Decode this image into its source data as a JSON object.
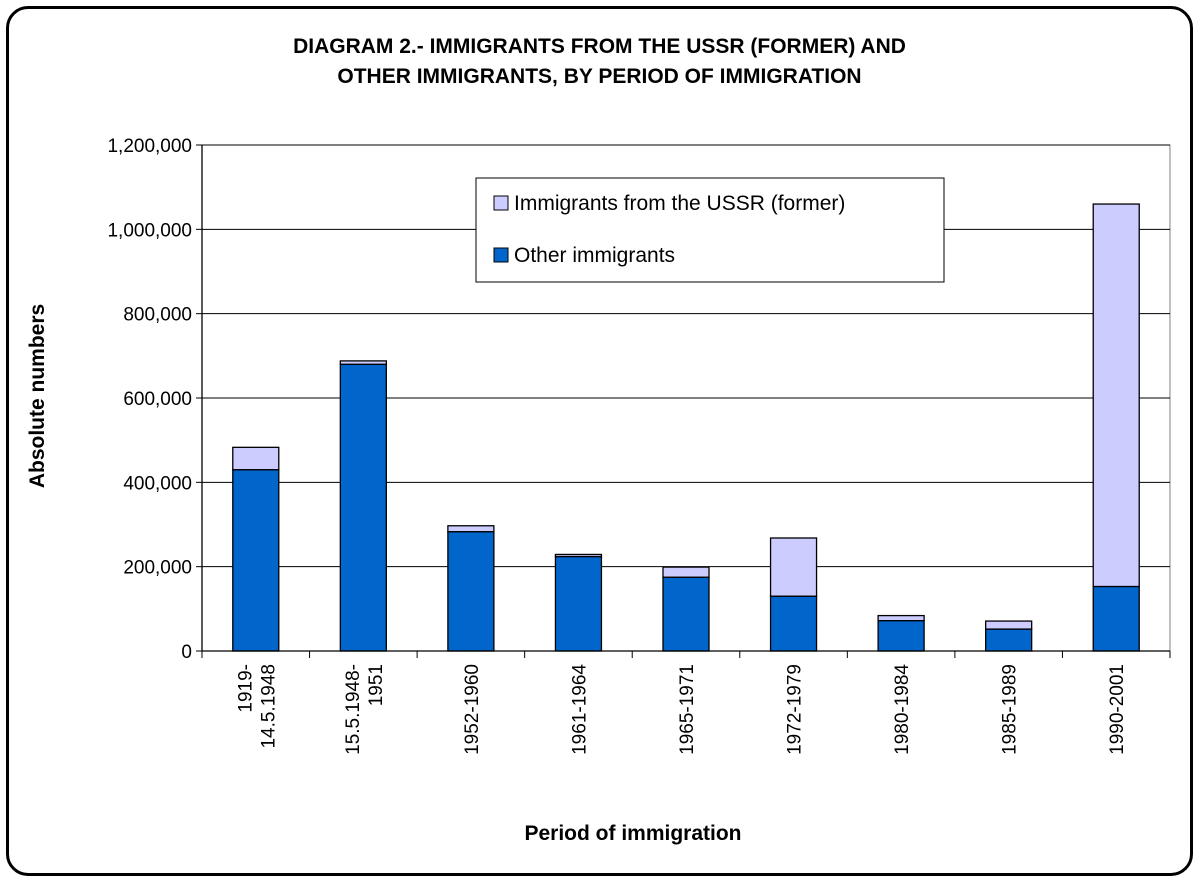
{
  "chart_data": {
    "type": "bar",
    "stacked": true,
    "title_lines": [
      "DIAGRAM 2.- IMMIGRANTS FROM THE USSR (FORMER) AND",
      "OTHER IMMIGRANTS, BY PERIOD OF IMMIGRATION"
    ],
    "xlabel": "Period of immigration",
    "ylabel": "Absolute numbers",
    "ylim": [
      0,
      1200000
    ],
    "y_ticks": [
      0,
      200000,
      400000,
      600000,
      800000,
      1000000,
      1200000
    ],
    "y_tick_labels": [
      "0",
      "200,000",
      "400,000",
      "600,000",
      "800,000",
      "1,000,000",
      "1,200,000"
    ],
    "categories": [
      [
        "1919-",
        "14.5.1948"
      ],
      [
        "15.5.1948-",
        "1951"
      ],
      [
        "1952-1960"
      ],
      [
        "1961-1964"
      ],
      [
        "1965-1971"
      ],
      [
        "1972-1979"
      ],
      [
        "1980-1984"
      ],
      [
        "1985-1989"
      ],
      [
        "1990-2001"
      ]
    ],
    "series": [
      {
        "name": "Other immigrants",
        "color": "#0066cc",
        "values": [
          430000,
          680000,
          283000,
          224000,
          175000,
          130000,
          72000,
          52000,
          153000
        ]
      },
      {
        "name": "Immigrants from the USSR (former)",
        "color": "#ccccff",
        "values": [
          53000,
          8000,
          14000,
          5000,
          24000,
          138000,
          12000,
          19000,
          907000
        ]
      }
    ],
    "legend_placement": "top-right inside plot",
    "grid": "horizontal major gridlines",
    "plot_background": "#ffffff"
  }
}
